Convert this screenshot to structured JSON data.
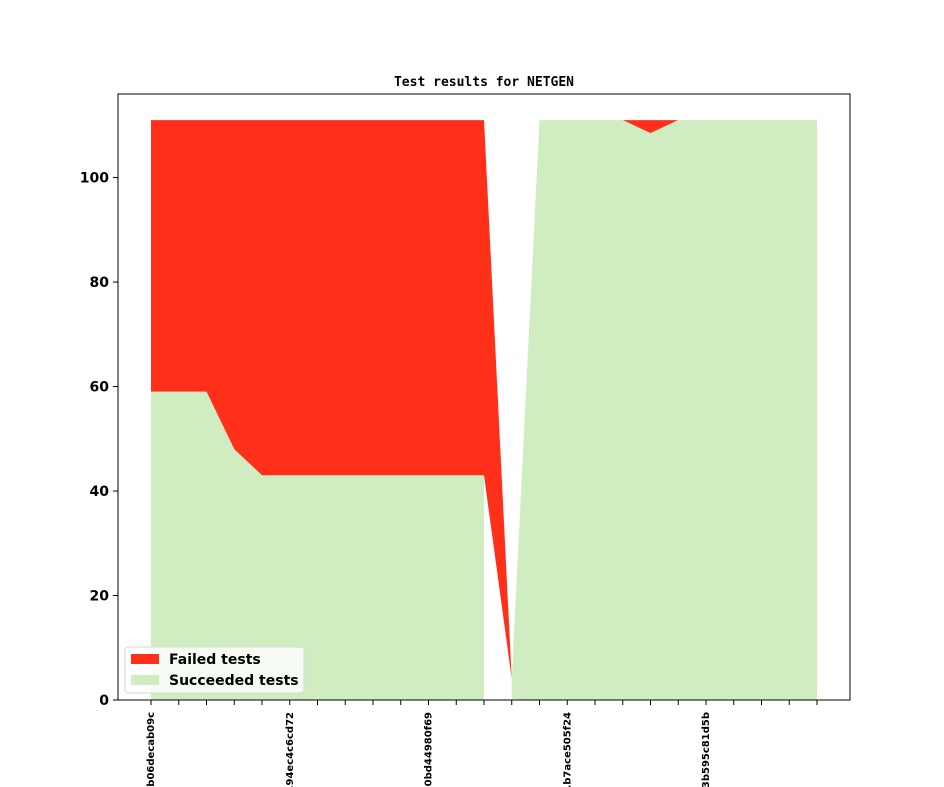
{
  "chart_data": {
    "type": "area",
    "title": "Test results for NETGEN",
    "xlabel": "",
    "ylabel": "",
    "ylim": [
      0,
      116
    ],
    "y_ticks": [
      0,
      20,
      40,
      60,
      80,
      100
    ],
    "grid": false,
    "stacked": true,
    "legend": {
      "placement": "lower-left"
    },
    "x_tick_labels": [
      {
        "index": 0,
        "label": "...b06decab09c"
      },
      {
        "index": 5,
        "label": "...94ec4c6cd72"
      },
      {
        "index": 10,
        "label": "...0bd44980f69"
      },
      {
        "index": 15,
        "label": "...b7ace505f24"
      },
      {
        "index": 20,
        "label": "...3b595c81d5b"
      }
    ],
    "x": [
      0,
      1,
      2,
      3,
      4,
      5,
      6,
      7,
      8,
      9,
      10,
      11,
      12,
      13,
      14,
      15,
      16,
      17,
      18,
      19,
      20,
      21,
      22,
      23,
      24
    ],
    "series": [
      {
        "name": "Succeeded tests",
        "color": "#cfedc0",
        "values": [
          59,
          59,
          59,
          48,
          43,
          43,
          43,
          43,
          43,
          43,
          43,
          43,
          43,
          4,
          111,
          111,
          111,
          111,
          108.5,
          111,
          111,
          111,
          111,
          111,
          111
        ]
      },
      {
        "name": "Failed tests",
        "color": "#ff3019",
        "values": [
          52,
          52,
          52,
          63,
          68,
          68,
          68,
          68,
          68,
          68,
          68,
          68,
          68,
          0,
          0,
          0,
          0,
          0,
          2.5,
          0,
          0,
          0,
          0,
          0,
          0
        ]
      }
    ],
    "gaps": [
      {
        "series": "Succeeded tests",
        "after_index": 12,
        "note_omitted": true
      }
    ]
  }
}
